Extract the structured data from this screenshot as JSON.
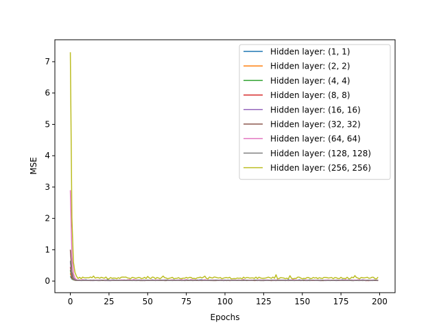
{
  "chart_data": {
    "type": "line",
    "xlabel": "Epochs",
    "ylabel": "MSE",
    "xlim": [
      -10,
      210
    ],
    "ylim": [
      -0.37,
      7.7
    ],
    "xticks": [
      0,
      25,
      50,
      75,
      100,
      125,
      150,
      175,
      200
    ],
    "yticks": [
      0,
      1,
      2,
      3,
      4,
      5,
      6,
      7
    ],
    "grid": false,
    "legend_position": "top-right",
    "epochs": 200,
    "series": [
      {
        "name": "Hidden layer: (1, 1)",
        "color": "#1f77b4",
        "start": 0.15,
        "floor": 0.03,
        "noise": 0.003
      },
      {
        "name": "Hidden layer: (2, 2)",
        "color": "#ff7f0e",
        "start": 0.25,
        "floor": 0.02,
        "noise": 0.003
      },
      {
        "name": "Hidden layer: (4, 4)",
        "color": "#2ca02c",
        "start": 0.35,
        "floor": 0.02,
        "noise": 0.003
      },
      {
        "name": "Hidden layer: (8, 8)",
        "color": "#d62728",
        "start": 0.45,
        "floor": 0.02,
        "noise": 0.004
      },
      {
        "name": "Hidden layer: (16, 16)",
        "color": "#9467bd",
        "start": 0.6,
        "floor": 0.02,
        "noise": 0.004
      },
      {
        "name": "Hidden layer: (32, 32)",
        "color": "#8c564b",
        "start": 1.0,
        "floor": 0.02,
        "noise": 0.005
      },
      {
        "name": "Hidden layer: (64, 64)",
        "color": "#e377c2",
        "start": 2.9,
        "floor": 0.03,
        "noise": 0.006
      },
      {
        "name": "Hidden layer: (128, 128)",
        "color": "#7f7f7f",
        "start": 0.65,
        "floor": 0.02,
        "noise": 0.004
      },
      {
        "name": "Hidden layer: (256, 256)",
        "color": "#bcbd22",
        "start": 7.3,
        "floor": 0.1,
        "noise": 0.03
      }
    ]
  }
}
